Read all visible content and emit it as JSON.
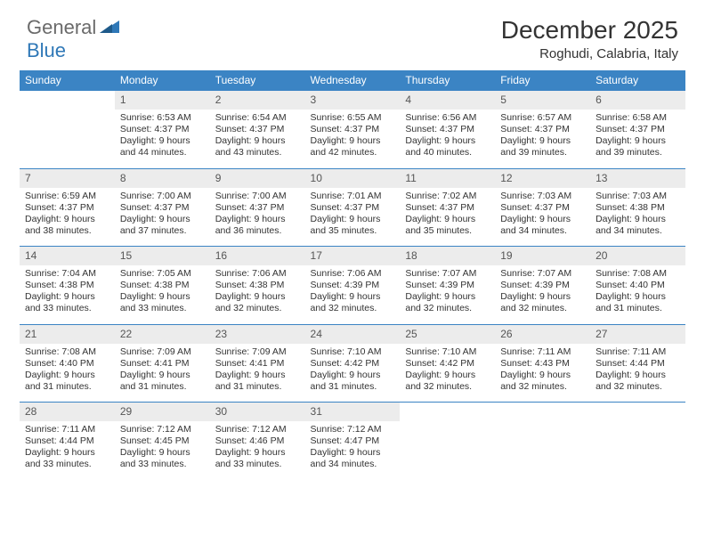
{
  "logo": {
    "text1": "General",
    "text2": "Blue"
  },
  "title": "December 2025",
  "location": "Roghudi, Calabria, Italy",
  "colors": {
    "header_bg": "#3b84c4",
    "header_text": "#ffffff",
    "daynum_bg": "#ececec",
    "border": "#3b84c4",
    "text": "#333333",
    "logo_gray": "#6a6a6a",
    "logo_blue": "#2f78b7"
  },
  "weekdays": [
    "Sunday",
    "Monday",
    "Tuesday",
    "Wednesday",
    "Thursday",
    "Friday",
    "Saturday"
  ],
  "weeks": [
    {
      "nums": [
        "",
        "1",
        "2",
        "3",
        "4",
        "5",
        "6"
      ],
      "cells": [
        "",
        "Sunrise: 6:53 AM\nSunset: 4:37 PM\nDaylight: 9 hours and 44 minutes.",
        "Sunrise: 6:54 AM\nSunset: 4:37 PM\nDaylight: 9 hours and 43 minutes.",
        "Sunrise: 6:55 AM\nSunset: 4:37 PM\nDaylight: 9 hours and 42 minutes.",
        "Sunrise: 6:56 AM\nSunset: 4:37 PM\nDaylight: 9 hours and 40 minutes.",
        "Sunrise: 6:57 AM\nSunset: 4:37 PM\nDaylight: 9 hours and 39 minutes.",
        "Sunrise: 6:58 AM\nSunset: 4:37 PM\nDaylight: 9 hours and 39 minutes."
      ]
    },
    {
      "nums": [
        "7",
        "8",
        "9",
        "10",
        "11",
        "12",
        "13"
      ],
      "cells": [
        "Sunrise: 6:59 AM\nSunset: 4:37 PM\nDaylight: 9 hours and 38 minutes.",
        "Sunrise: 7:00 AM\nSunset: 4:37 PM\nDaylight: 9 hours and 37 minutes.",
        "Sunrise: 7:00 AM\nSunset: 4:37 PM\nDaylight: 9 hours and 36 minutes.",
        "Sunrise: 7:01 AM\nSunset: 4:37 PM\nDaylight: 9 hours and 35 minutes.",
        "Sunrise: 7:02 AM\nSunset: 4:37 PM\nDaylight: 9 hours and 35 minutes.",
        "Sunrise: 7:03 AM\nSunset: 4:37 PM\nDaylight: 9 hours and 34 minutes.",
        "Sunrise: 7:03 AM\nSunset: 4:38 PM\nDaylight: 9 hours and 34 minutes."
      ]
    },
    {
      "nums": [
        "14",
        "15",
        "16",
        "17",
        "18",
        "19",
        "20"
      ],
      "cells": [
        "Sunrise: 7:04 AM\nSunset: 4:38 PM\nDaylight: 9 hours and 33 minutes.",
        "Sunrise: 7:05 AM\nSunset: 4:38 PM\nDaylight: 9 hours and 33 minutes.",
        "Sunrise: 7:06 AM\nSunset: 4:38 PM\nDaylight: 9 hours and 32 minutes.",
        "Sunrise: 7:06 AM\nSunset: 4:39 PM\nDaylight: 9 hours and 32 minutes.",
        "Sunrise: 7:07 AM\nSunset: 4:39 PM\nDaylight: 9 hours and 32 minutes.",
        "Sunrise: 7:07 AM\nSunset: 4:39 PM\nDaylight: 9 hours and 32 minutes.",
        "Sunrise: 7:08 AM\nSunset: 4:40 PM\nDaylight: 9 hours and 31 minutes."
      ]
    },
    {
      "nums": [
        "21",
        "22",
        "23",
        "24",
        "25",
        "26",
        "27"
      ],
      "cells": [
        "Sunrise: 7:08 AM\nSunset: 4:40 PM\nDaylight: 9 hours and 31 minutes.",
        "Sunrise: 7:09 AM\nSunset: 4:41 PM\nDaylight: 9 hours and 31 minutes.",
        "Sunrise: 7:09 AM\nSunset: 4:41 PM\nDaylight: 9 hours and 31 minutes.",
        "Sunrise: 7:10 AM\nSunset: 4:42 PM\nDaylight: 9 hours and 31 minutes.",
        "Sunrise: 7:10 AM\nSunset: 4:42 PM\nDaylight: 9 hours and 32 minutes.",
        "Sunrise: 7:11 AM\nSunset: 4:43 PM\nDaylight: 9 hours and 32 minutes.",
        "Sunrise: 7:11 AM\nSunset: 4:44 PM\nDaylight: 9 hours and 32 minutes."
      ]
    },
    {
      "nums": [
        "28",
        "29",
        "30",
        "31",
        "",
        "",
        ""
      ],
      "cells": [
        "Sunrise: 7:11 AM\nSunset: 4:44 PM\nDaylight: 9 hours and 33 minutes.",
        "Sunrise: 7:12 AM\nSunset: 4:45 PM\nDaylight: 9 hours and 33 minutes.",
        "Sunrise: 7:12 AM\nSunset: 4:46 PM\nDaylight: 9 hours and 33 minutes.",
        "Sunrise: 7:12 AM\nSunset: 4:47 PM\nDaylight: 9 hours and 34 minutes.",
        "",
        "",
        ""
      ]
    }
  ]
}
